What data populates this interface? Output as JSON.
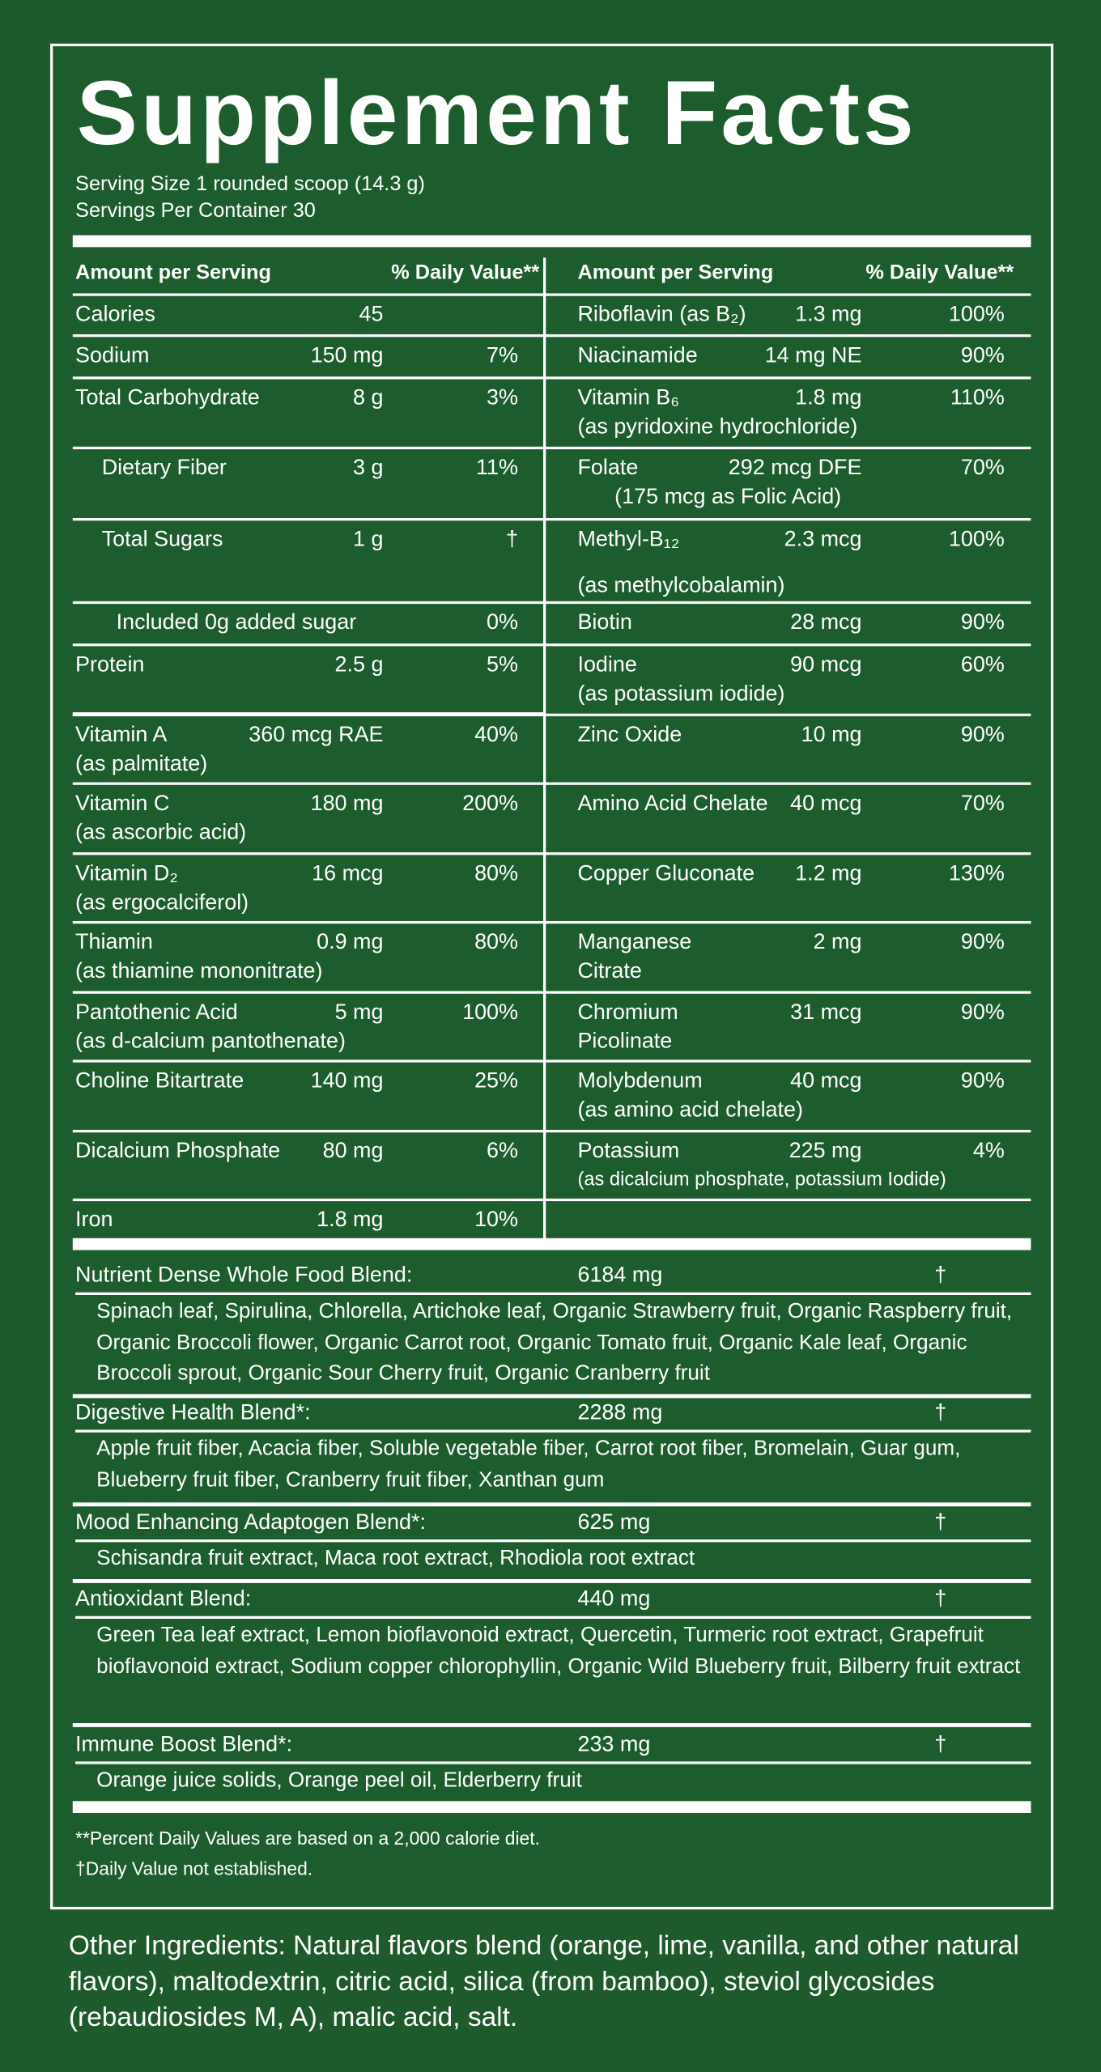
{
  "title": "Supplement Facts",
  "serving_size": "Serving Size 1 rounded scoop (14.3 g)",
  "servings_per_container": "Servings Per Container 30",
  "left": {
    "header": {
      "amount": "Amount per Serving",
      "daily_value": "% Daily Value**"
    },
    "rows": [
      {
        "name": "Calories",
        "amount": "45"
      },
      {
        "name": "Sodium",
        "amount": "150 mg",
        "dv": "7%"
      },
      {
        "name": "Total Carbohydrate",
        "amount": "8 g",
        "dv": "3%"
      },
      {
        "name": "Dietary Fiber",
        "amount": "3 g",
        "dv": "11%"
      },
      {
        "name": "Total Sugars",
        "amount": "1 g",
        "dv": "†"
      },
      {
        "name": "Included 0g added sugar",
        "dv": "0%"
      },
      {
        "name": "Protein",
        "amount": "2.5 g",
        "dv": "5%"
      },
      {
        "name": "Vitamin A",
        "sub": "(as palmitate)",
        "amount": "360 mcg RAE",
        "dv": "40%"
      },
      {
        "name": "Vitamin C",
        "sub": "(as ascorbic acid)",
        "amount": "180 mg",
        "dv": "200%"
      },
      {
        "name": "Vitamin D₂",
        "sub": "(as ergocalciferol)",
        "amount": "16 mcg",
        "dv": "80%"
      },
      {
        "name": "Thiamin",
        "sub": "(as thiamine mononitrate)",
        "amount": "0.9 mg",
        "dv": "80%"
      },
      {
        "name": "Pantothenic Acid",
        "sub": "(as d-calcium pantothenate)",
        "amount": "5 mg",
        "dv": "100%"
      },
      {
        "name": "Choline Bitartrate",
        "amount": "140 mg",
        "dv": "25%"
      },
      {
        "name": "Dicalcium Phosphate",
        "amount": "80 mg",
        "dv": "6%"
      },
      {
        "name": "Iron",
        "amount": "1.8 mg",
        "dv": "10%"
      }
    ]
  },
  "right": {
    "header": {
      "amount": "Amount per Serving",
      "daily_value": "% Daily Value**"
    },
    "rows": [
      {
        "name": "Riboflavin (as B₂)",
        "amount": "1.3 mg",
        "dv": "100%"
      },
      {
        "name": "Niacinamide",
        "amount": "14 mg NE",
        "dv": "90%"
      },
      {
        "name": "Vitamin B₆",
        "sub": "(as pyridoxine hydrochloride)",
        "amount": "1.8 mg",
        "dv": "110%"
      },
      {
        "name": "Folate",
        "sub": "(175 mcg as Folic Acid)",
        "amount": "292 mcg DFE",
        "dv": "70%"
      },
      {
        "name": "Methyl-B₁₂",
        "sub": "(as methylcobalamin)",
        "amount": "2.3 mcg",
        "dv": "100%"
      },
      {
        "name": "Biotin",
        "amount": "28 mcg",
        "dv": "90%"
      },
      {
        "name": "Iodine",
        "sub": "(as potassium iodide)",
        "amount": "90 mcg",
        "dv": "60%"
      },
      {
        "name": "Zinc Oxide",
        "amount": "10 mg",
        "dv": "90%"
      },
      {
        "name": "Amino Acid Chelate",
        "amount": "40 mcg",
        "dv": "70%"
      },
      {
        "name": "Copper Gluconate",
        "amount": "1.2 mg",
        "dv": "130%"
      },
      {
        "name": "Manganese",
        "sub": "Citrate",
        "amount": "2 mg",
        "dv": "90%"
      },
      {
        "name": "Chromium",
        "sub": "Picolinate",
        "amount": "31 mcg",
        "dv": "90%"
      },
      {
        "name": "Molybdenum",
        "sub": "(as amino acid chelate)",
        "amount": "40 mcg",
        "dv": "90%"
      },
      {
        "name": "Potassium",
        "sub": "(as dicalcium phosphate, potassium Iodide)",
        "amount": "225 mg",
        "dv": "4%"
      }
    ]
  },
  "blends": [
    {
      "name": "Nutrient Dense Whole Food Blend:",
      "amount": "6184 mg",
      "dv": "†",
      "ingredients": "Spinach leaf, Spirulina, Chlorella, Artichoke leaf, Organic Strawberry fruit, Organic Raspberry fruit, Organic Broccoli flower, Organic Carrot root, Organic Tomato fruit, Organic Kale leaf, Organic Broccoli sprout, Organic Sour Cherry fruit, Organic Cranberry fruit"
    },
    {
      "name": "Digestive Health Blend*:",
      "amount": "2288 mg",
      "dv": "†",
      "ingredients": "Apple fruit fiber, Acacia fiber, Soluble vegetable fiber, Carrot root fiber, Bromelain, Guar gum, Blueberry fruit fiber, Cranberry fruit fiber, Xanthan gum"
    },
    {
      "name": "Mood Enhancing Adaptogen Blend*:",
      "amount": "625 mg",
      "dv": "†",
      "ingredients": "Schisandra fruit extract, Maca root extract, Rhodiola root extract"
    },
    {
      "name": "Antioxidant Blend:",
      "amount": "440 mg",
      "dv": "†",
      "ingredients": "Green Tea leaf extract, Lemon bioflavonoid extract, Quercetin, Turmeric root extract, Grapefruit bioflavonoid extract, Sodium copper chlorophyllin, Organic Wild Blueberry fruit, Bilberry fruit extract"
    },
    {
      "name": "Immune Boost Blend*:",
      "amount": "233 mg",
      "dv": "†",
      "ingredients": "Orange juice solids, Orange peel oil, Elderberry fruit"
    }
  ],
  "footnotes": [
    "**Percent Daily Values are based on a 2,000 calorie diet.",
    "†Daily Value not established."
  ],
  "other_ingredients": "Other Ingredients: Natural flavors blend (orange, lime, vanilla, and other natural flavors), maltodextrin, citric acid, silica (from bamboo), steviol glycosides (rebaudiosides M, A), malic acid, salt."
}
